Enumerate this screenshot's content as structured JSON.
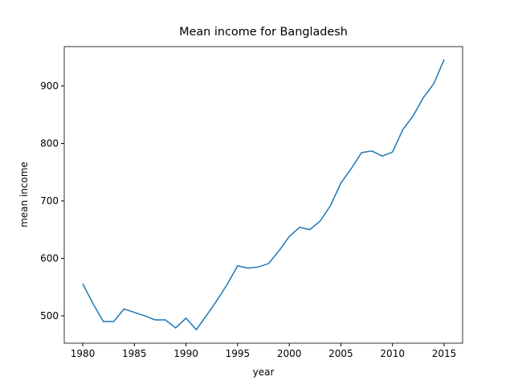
{
  "chart_data": {
    "type": "line",
    "title": "Mean income for Bangladesh",
    "x_label": "year",
    "y_label": "mean income",
    "x": [
      1980,
      1981,
      1982,
      1983,
      1984,
      1985,
      1986,
      1987,
      1988,
      1989,
      1990,
      1991,
      1992,
      1993,
      1994,
      1995,
      1996,
      1997,
      1998,
      1999,
      2000,
      2001,
      2002,
      2003,
      2004,
      2005,
      2006,
      2007,
      2008,
      2009,
      2010,
      2011,
      2012,
      2013,
      2014,
      2015
    ],
    "series": [
      {
        "name": "mean income",
        "color": "#1f77b4",
        "values": [
          556,
          521,
          490,
          490,
          512,
          506,
          500,
          493,
          493,
          479,
          496,
          476,
          501,
          527,
          555,
          587,
          583,
          585,
          591,
          613,
          638,
          654,
          650,
          665,
          692,
          731,
          756,
          784,
          787,
          778,
          785,
          824,
          848,
          880,
          904,
          946
        ]
      }
    ],
    "xlim": [
      1978.21,
      2016.79
    ],
    "ylim": [
      452.4,
      968.5
    ],
    "xticks": [
      1980,
      1985,
      1990,
      1995,
      2000,
      2005,
      2010,
      2015
    ],
    "yticks": [
      500,
      600,
      700,
      800,
      900
    ]
  }
}
